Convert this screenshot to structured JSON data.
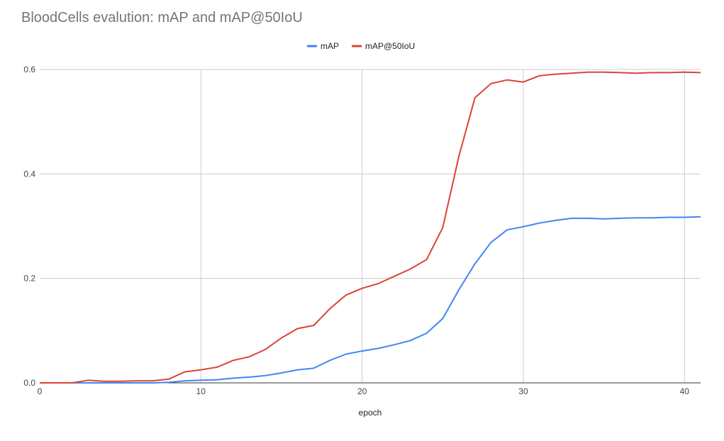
{
  "chart_data": {
    "type": "line",
    "title": "BloodCells evalution: mAP and mAP@50IoU",
    "xlabel": "epoch",
    "ylabel": "",
    "xlim": [
      0,
      41
    ],
    "ylim": [
      0,
      0.6
    ],
    "x_ticks": [
      0,
      10,
      20,
      30,
      40
    ],
    "y_ticks": [
      0.0,
      0.2,
      0.4,
      0.6
    ],
    "x_tick_labels": [
      "0",
      "10",
      "20",
      "30",
      "40"
    ],
    "y_tick_labels": [
      "0.0",
      "0.2",
      "0.4",
      "0.6"
    ],
    "grid": true,
    "legend_position": "top-center",
    "x": [
      0,
      1,
      2,
      3,
      4,
      5,
      6,
      7,
      8,
      9,
      10,
      11,
      12,
      13,
      14,
      15,
      16,
      17,
      18,
      19,
      20,
      21,
      22,
      23,
      24,
      25,
      26,
      27,
      28,
      29,
      30,
      31,
      32,
      33,
      34,
      35,
      36,
      37,
      38,
      39,
      40,
      41
    ],
    "series": [
      {
        "name": "mAP",
        "color": "#4285f4",
        "values": [
          0.0,
          0.0,
          0.0,
          0.0,
          0.0,
          0.0,
          0.0,
          0.0,
          0.001,
          0.004,
          0.005,
          0.006,
          0.009,
          0.011,
          0.014,
          0.019,
          0.025,
          0.028,
          0.043,
          0.055,
          0.061,
          0.066,
          0.073,
          0.081,
          0.095,
          0.123,
          0.178,
          0.228,
          0.269,
          0.293,
          0.299,
          0.306,
          0.311,
          0.315,
          0.315,
          0.314,
          0.315,
          0.316,
          0.316,
          0.317,
          0.317,
          0.318
        ]
      },
      {
        "name": "mAP@50IoU",
        "color": "#db4437",
        "values": [
          0.0,
          0.0,
          0.0,
          0.005,
          0.003,
          0.003,
          0.004,
          0.004,
          0.007,
          0.021,
          0.025,
          0.03,
          0.043,
          0.05,
          0.064,
          0.086,
          0.104,
          0.11,
          0.142,
          0.168,
          0.181,
          0.19,
          0.204,
          0.218,
          0.236,
          0.297,
          0.433,
          0.546,
          0.573,
          0.58,
          0.576,
          0.588,
          0.591,
          0.593,
          0.595,
          0.595,
          0.594,
          0.593,
          0.594,
          0.594,
          0.595,
          0.594
        ]
      }
    ]
  }
}
